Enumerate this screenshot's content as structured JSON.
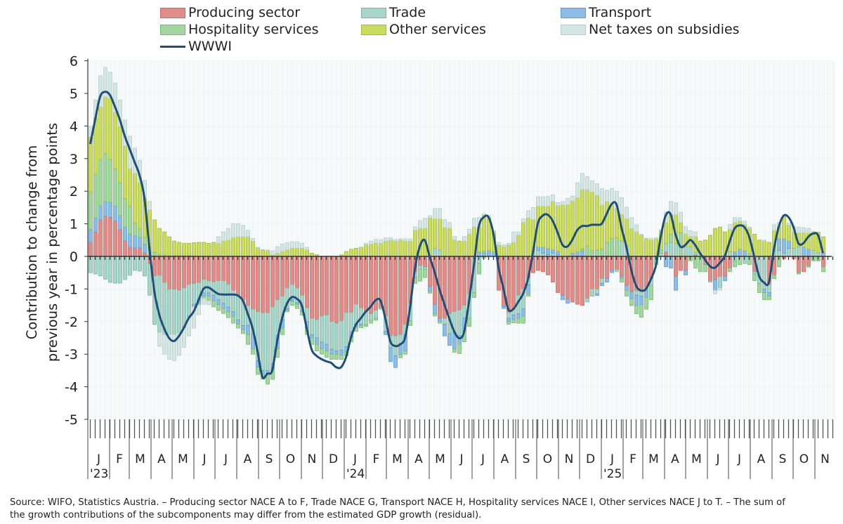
{
  "chart_data": {
    "type": "bar",
    "subtype": "stacked bar with line overlay, weekly",
    "ylabel_lines": [
      "Contribution to change from",
      "previous year in percentage points"
    ],
    "ylim": [
      -5,
      6
    ],
    "yticks": [
      "-5",
      "-4",
      "-3",
      "-2",
      "-1",
      "0",
      "1",
      "2",
      "3",
      "4",
      "5",
      "6"
    ],
    "grid": true,
    "legend_placement": "top",
    "x_start": "2023-01-01",
    "x_end": "2025-11-30",
    "x_frequency": "weekly",
    "month_labels": [
      "J",
      "F",
      "M",
      "A",
      "M",
      "J",
      "J",
      "A",
      "S",
      "O",
      "N",
      "D",
      "J",
      "F",
      "M",
      "A",
      "M",
      "J",
      "J",
      "A",
      "S",
      "O",
      "N",
      "D",
      "J",
      "F",
      "M",
      "A",
      "M",
      "J",
      "J",
      "A",
      "S",
      "O",
      "N"
    ],
    "year_labels": [
      {
        "month_index": 0,
        "label": "'23"
      },
      {
        "month_index": 12,
        "label": "'24"
      },
      {
        "month_index": 24,
        "label": "'25"
      }
    ],
    "series": [
      {
        "name": "Producing sector",
        "color": "#e08c89",
        "edge": "#cf6a67"
      },
      {
        "name": "Trade",
        "color": "#a9d5c8",
        "edge": "#79b7a4"
      },
      {
        "name": "Transport",
        "color": "#8dbde7",
        "edge": "#5f9dd3"
      },
      {
        "name": "Hospitality services",
        "color": "#a4d5a0",
        "edge": "#72bd6e"
      },
      {
        "name": "Other services",
        "color": "#c9dc5e",
        "edge": "#a2bb33"
      },
      {
        "name": "Net taxes on subsidies",
        "color": "#d4e6e3",
        "edge": "#b4cfcb"
      }
    ],
    "line": {
      "name": "WWWI",
      "color": "#1f4e79"
    },
    "columns": [
      "Producing sector",
      "Trade",
      "Transport",
      "Hospitality services",
      "Other services",
      "Net taxes on subsidies",
      "WWWI"
    ],
    "weeks": [
      [
        0.43,
        -0.5,
        0.39,
        1.16,
        1.68,
        0.33,
        3.45
      ],
      [
        0.75,
        -0.54,
        0.43,
        1.34,
        1.73,
        0.55,
        4.2
      ],
      [
        1.12,
        -0.6,
        0.43,
        1.42,
        1.62,
        0.95,
        4.9
      ],
      [
        1.23,
        -0.7,
        0.45,
        1.47,
        1.74,
        0.91,
        5.05
      ],
      [
        1.2,
        -0.8,
        0.46,
        1.31,
        1.88,
        0.8,
        4.95
      ],
      [
        1.08,
        -0.82,
        0.47,
        1.14,
        1.73,
        0.9,
        4.6
      ],
      [
        0.82,
        -0.82,
        0.43,
        1.01,
        1.73,
        0.81,
        4.2
      ],
      [
        0.47,
        -0.71,
        0.43,
        0.87,
        1.61,
        0.8,
        3.7
      ],
      [
        0.28,
        -0.58,
        0.41,
        0.86,
        1.14,
        1.0,
        3.3
      ],
      [
        0.26,
        -0.43,
        0.37,
        0.4,
        1.51,
        0.78,
        2.9
      ],
      [
        0.26,
        -0.45,
        0.32,
        0.26,
        1.42,
        0.69,
        2.5
      ],
      [
        0.11,
        -0.6,
        0.26,
        0.21,
        1.21,
        0.54,
        1.8
      ],
      [
        -0.22,
        -0.97,
        0.03,
        0.25,
        1.15,
        0.26,
        0.3
      ],
      [
        -0.6,
        -1.49,
        0.02,
        0.1,
        1.0,
        0,
        -1.04
      ],
      [
        -0.58,
        -1.75,
        0,
        0.05,
        0.81,
        -0.43,
        -1.77
      ],
      [
        -0.8,
        -1.6,
        0,
        0.03,
        0.72,
        -0.6,
        -2.2
      ],
      [
        -1.01,
        -1.39,
        0,
        0.02,
        0.58,
        -0.76,
        -2.5
      ],
      [
        -1.01,
        -1.39,
        0,
        0.02,
        0.45,
        -0.8,
        -2.6
      ],
      [
        -1.04,
        -1.32,
        0,
        0.02,
        0.41,
        -0.68,
        -2.45
      ],
      [
        -0.97,
        -1.19,
        -0.03,
        0.02,
        0.38,
        -0.6,
        -2.2
      ],
      [
        -0.86,
        -0.97,
        -0.04,
        0.02,
        0.38,
        -0.57,
        -1.9
      ],
      [
        -0.83,
        -0.64,
        -0.08,
        0,
        0.42,
        -0.65,
        -1.7
      ],
      [
        -0.8,
        -0.53,
        -0.1,
        -0.06,
        0.43,
        -0.3,
        -1.35
      ],
      [
        -0.71,
        -0.41,
        -0.1,
        -0.07,
        0.43,
        -0.18,
        -1.0
      ],
      [
        -0.75,
        -0.37,
        -0.1,
        -0.14,
        0.4,
        -0.12,
        -0.95
      ],
      [
        -0.78,
        -0.41,
        -0.17,
        -0.19,
        0.43,
        0,
        -1.05
      ],
      [
        -0.75,
        -0.58,
        -0.15,
        -0.18,
        0.4,
        0.2,
        -1.15
      ],
      [
        -0.75,
        -0.69,
        -0.16,
        -0.15,
        0.47,
        0.28,
        -1.17
      ],
      [
        -0.86,
        -0.69,
        -0.15,
        -0.18,
        0.5,
        0.36,
        -1.17
      ],
      [
        -1.04,
        -0.66,
        -0.14,
        -0.21,
        0.58,
        0.42,
        -1.17
      ],
      [
        -1.22,
        -0.73,
        -0.12,
        -0.13,
        0.6,
        0.4,
        -1.2
      ],
      [
        -1.33,
        -0.79,
        -0.13,
        -0.12,
        0.6,
        0.35,
        -1.35
      ],
      [
        -1.51,
        -0.6,
        -0.29,
        -0.3,
        0.6,
        0.2,
        -1.75
      ],
      [
        -1.62,
        -0.75,
        -0.47,
        -0.16,
        0.47,
        0.08,
        -2.2
      ],
      [
        -1.7,
        -1.5,
        -0.2,
        -0.22,
        0.26,
        0.02,
        -2.9
      ],
      [
        -1.73,
        -1.77,
        -0.1,
        -0.17,
        0.2,
        0,
        -3.7
      ],
      [
        -1.73,
        -1.77,
        -0.1,
        -0.32,
        0.17,
        0.03,
        -3.6
      ],
      [
        -1.55,
        -1.75,
        -0.15,
        -0.32,
        0.05,
        0.12,
        -3.5
      ],
      [
        -1.33,
        -1.1,
        -0.4,
        -0.27,
        0.1,
        0.2,
        -2.6
      ],
      [
        -1.22,
        -0.73,
        -0.25,
        -0.2,
        0.15,
        0.23,
        -1.9
      ],
      [
        -0.97,
        -0.63,
        -0.05,
        -0.05,
        0.2,
        0.22,
        -1.45
      ],
      [
        -0.86,
        -0.47,
        -0.05,
        -0.12,
        0.25,
        0.2,
        -1.25
      ],
      [
        -0.97,
        -0.45,
        -0.05,
        -0.13,
        0.25,
        0.2,
        -1.3
      ],
      [
        -1.19,
        -0.47,
        -0.04,
        -0.1,
        0.25,
        0.15,
        -1.5
      ],
      [
        -1.58,
        -0.42,
        -0.2,
        -0.2,
        0.2,
        0.08,
        -2.2
      ],
      [
        -1.9,
        -0.5,
        -0.1,
        -0.2,
        0.1,
        0,
        -2.85
      ],
      [
        -1.94,
        -0.56,
        -0.2,
        -0.2,
        0.05,
        0,
        -3.05
      ],
      [
        -1.83,
        -0.8,
        -0.2,
        -0.17,
        0,
        0,
        -3.15
      ],
      [
        -1.8,
        -0.9,
        -0.2,
        -0.2,
        0,
        0,
        -3.22
      ],
      [
        -2.0,
        -0.85,
        -0.15,
        -0.16,
        0,
        0,
        -3.27
      ],
      [
        -2.05,
        -0.85,
        -0.1,
        -0.16,
        0,
        0,
        -3.4
      ],
      [
        -1.98,
        -0.9,
        -0.15,
        -0.13,
        0.05,
        0,
        -3.4
      ],
      [
        -1.72,
        -1.05,
        -0.15,
        -0.13,
        0.15,
        0,
        -3.1
      ],
      [
        -1.72,
        -0.6,
        -0.15,
        -0.15,
        0.22,
        0,
        -2.5
      ],
      [
        -1.47,
        -0.6,
        -0.1,
        -0.13,
        0.25,
        0,
        -2.1
      ],
      [
        -1.58,
        -0.5,
        -0.04,
        -0.07,
        0.27,
        0.02,
        -1.9
      ],
      [
        -1.69,
        -0.4,
        0,
        -0.06,
        0.36,
        0.04,
        -1.7
      ],
      [
        -1.76,
        -0.2,
        0,
        -0.09,
        0.37,
        0.1,
        -1.55
      ],
      [
        -1.65,
        -0.25,
        0,
        -0.06,
        0.41,
        0.11,
        -1.35
      ],
      [
        -1.58,
        -0.04,
        0,
        0,
        0.4,
        0.11,
        -1.35
      ],
      [
        -1.83,
        -0.47,
        -0.1,
        0,
        0.47,
        0.1,
        -1.9
      ],
      [
        -2.44,
        -0.36,
        -0.43,
        0,
        0.5,
        0.07,
        -2.6
      ],
      [
        -2.44,
        -0.61,
        -0.36,
        0,
        0.47,
        0.05,
        -2.75
      ],
      [
        -2.4,
        -0.28,
        -0.33,
        -0.1,
        0.5,
        0.04,
        -2.7
      ],
      [
        -2.08,
        -0.32,
        -0.5,
        -0.1,
        0.47,
        0.07,
        -2.5
      ],
      [
        -1.44,
        -0.54,
        0,
        -0.14,
        0.47,
        0.07,
        -1.6
      ],
      [
        -0.47,
        -0.18,
        0,
        -0.18,
        0.8,
        0.1,
        -0.4
      ],
      [
        -0.29,
        -0.1,
        0,
        -0.37,
        0.86,
        0.24,
        0.3
      ],
      [
        -0.33,
        -0.07,
        0,
        -0.25,
        0.86,
        0.31,
        0.5
      ],
      [
        -0.93,
        0,
        -0.15,
        -0.05,
        1.18,
        0.07,
        0.0
      ],
      [
        -1.47,
        0.25,
        -0.29,
        -0.07,
        0.9,
        0.32,
        -0.47
      ],
      [
        -1.9,
        0.2,
        -0.1,
        -0.05,
        0.95,
        0.32,
        -1.0
      ],
      [
        -1.9,
        -0.18,
        -0.36,
        0,
        0.88,
        0.25,
        -1.47
      ],
      [
        -1.76,
        -0.61,
        -0.36,
        0,
        0.86,
        0.18,
        -1.9
      ],
      [
        -1.69,
        -0.65,
        -0.5,
        -0.1,
        0.5,
        0.11,
        -2.3
      ],
      [
        -1.65,
        -0.79,
        -0.25,
        -0.29,
        0.47,
        0,
        -2.51
      ],
      [
        -1.5,
        -0.39,
        -0.4,
        -0.33,
        0.47,
        0.14,
        -2.33
      ],
      [
        -1.15,
        -0.75,
        0,
        -0.25,
        0.68,
        0.15,
        -1.4
      ],
      [
        -0.02,
        -1.09,
        0,
        -0.15,
        0.9,
        0.27,
        -0.3
      ],
      [
        0,
        -0.22,
        0.14,
        -0.32,
        0.76,
        0.29,
        0.9
      ],
      [
        0,
        -0.05,
        0.11,
        0.05,
        1.11,
        0.04,
        1.2
      ],
      [
        0,
        0,
        0.18,
        0,
        1.0,
        0.07,
        1.2
      ],
      [
        0,
        0,
        0.14,
        0,
        0.6,
        0.05,
        0.68
      ],
      [
        -1.04,
        0,
        0,
        0,
        0.35,
        0.08,
        -0.32
      ],
      [
        -1.54,
        0,
        -0.06,
        0,
        0.3,
        0.06,
        -0.97
      ],
      [
        -1.72,
        -0.18,
        -0.1,
        -0.08,
        0.35,
        0.05,
        -1.62
      ],
      [
        -1.62,
        -0.18,
        -0.14,
        -0.1,
        0.43,
        0.32,
        -1.62
      ],
      [
        -1.19,
        -0.57,
        -0.14,
        -0.15,
        0.65,
        0.1,
        -1.4
      ],
      [
        -1.0,
        -0.61,
        -0.22,
        -0.22,
        1.04,
        0.11,
        -1.15
      ],
      [
        -0.65,
        -0.22,
        -0.28,
        -0.07,
        1.18,
        0.22,
        -0.7
      ],
      [
        -0.5,
        0.14,
        0,
        0,
        0.99,
        0.37,
        0.1
      ],
      [
        -0.43,
        0.18,
        0.11,
        0,
        1.25,
        0.29,
        1.0
      ],
      [
        -0.47,
        0.1,
        0.18,
        0,
        1.26,
        0.29,
        1.25
      ],
      [
        -0.57,
        0.05,
        0.19,
        0,
        1.3,
        0.3,
        1.28
      ],
      [
        -0.79,
        0.1,
        0.1,
        0,
        1.49,
        0.2,
        1.1
      ],
      [
        -1.11,
        0.05,
        0.1,
        0,
        1.4,
        0.1,
        0.75
      ],
      [
        -1.2,
        0,
        -0.13,
        0,
        1.58,
        0.1,
        0.36
      ],
      [
        -1.3,
        0,
        -0.14,
        0,
        1.58,
        0.2,
        0.3
      ],
      [
        -1.4,
        0,
        0.1,
        0,
        1.6,
        0.15,
        0.5
      ],
      [
        -1.47,
        0,
        0.14,
        0,
        1.66,
        0.46,
        0.8
      ],
      [
        -1.5,
        0,
        0.18,
        0.05,
        1.82,
        0.5,
        0.93
      ],
      [
        -1.29,
        -0.11,
        0,
        0.32,
        1.72,
        0.41,
        0.93
      ],
      [
        -1.0,
        -0.22,
        0,
        0.18,
        1.79,
        0.35,
        0.97
      ],
      [
        -1.0,
        -0.15,
        -0.05,
        0.2,
        1.67,
        0.36,
        0.97
      ],
      [
        -0.68,
        -0.15,
        -0.07,
        0.22,
        1.36,
        0.5,
        1.0
      ],
      [
        -0.68,
        0,
        -0.11,
        0.43,
        1.25,
        0.35,
        1.3
      ],
      [
        -0.43,
        0,
        -0.07,
        0.54,
        1.04,
        0.5,
        1.6
      ],
      [
        -0.4,
        -0.07,
        0,
        0.57,
        0.9,
        0.53,
        1.6
      ],
      [
        -0.61,
        0.47,
        -0.07,
        -0.11,
        0.82,
        0.51,
        0.9
      ],
      [
        -0.9,
        0.32,
        -0.14,
        -0.18,
        0.83,
        0.36,
        0.3
      ],
      [
        -1.08,
        0,
        -0.22,
        -0.21,
        0.86,
        0.33,
        -0.4
      ],
      [
        -1.05,
        -0.14,
        -0.32,
        -0.25,
        0.75,
        0.22,
        -0.9
      ],
      [
        -1.08,
        -0.14,
        -0.26,
        -0.39,
        0.65,
        0.03,
        -1.05
      ],
      [
        -0.97,
        -0.07,
        -0.22,
        -0.36,
        0.54,
        0.02,
        -1.0
      ],
      [
        -0.68,
        -0.22,
        0,
        -0.43,
        0.5,
        0.05,
        -0.7
      ],
      [
        0,
        0,
        0,
        -0.25,
        0.54,
        0.03,
        -0.3
      ],
      [
        0,
        0.1,
        0,
        0.1,
        0.59,
        0.02,
        0.6
      ],
      [
        0.14,
        0.26,
        -0.32,
        0,
        0.64,
        0.32,
        1.25
      ],
      [
        0,
        0.43,
        -0.36,
        0.25,
        0.61,
        0.4,
        1.3
      ],
      [
        -0.61,
        0.4,
        -0.43,
        0,
        0.88,
        0.36,
        0.68
      ],
      [
        -0.43,
        0,
        0,
        0.72,
        0.32,
        0.32,
        0.3
      ],
      [
        -0.43,
        0.29,
        -0.14,
        0,
        0.39,
        0.23,
        0.35
      ],
      [
        0,
        0.29,
        0,
        -0.14,
        0.32,
        0.18,
        0.5
      ],
      [
        0.05,
        0.07,
        0,
        -0.36,
        0.49,
        0.14,
        0.35
      ],
      [
        0,
        0,
        0,
        -0.47,
        0.47,
        0,
        0.1
      ],
      [
        -0.25,
        0,
        0,
        -0.22,
        0.5,
        0,
        -0.1
      ],
      [
        -0.75,
        -0.04,
        0,
        0,
        0.65,
        0,
        -0.3
      ],
      [
        -0.72,
        0,
        -0.32,
        0,
        0.86,
        -0.11,
        -0.35
      ],
      [
        -0.61,
        -0.36,
        0,
        0,
        0.9,
        -0.07,
        -0.2
      ],
      [
        -0.61,
        0,
        -0.14,
        0,
        0.75,
        0,
        0.0
      ],
      [
        -0.36,
        0.14,
        0,
        -0.11,
        0.69,
        0.15,
        0.45
      ],
      [
        0,
        -0.14,
        0.14,
        -0.18,
        0.9,
        0.15,
        0.85
      ],
      [
        0,
        0,
        0.22,
        -0.25,
        0.86,
        0.11,
        0.95
      ],
      [
        0,
        -0.22,
        0.18,
        0,
        0.8,
        0.1,
        0.9
      ],
      [
        0,
        0.07,
        0,
        -0.25,
        0.79,
        0.04,
        0.6
      ],
      [
        -0.47,
        -0.07,
        0,
        -0.21,
        0.68,
        0,
        0.0
      ],
      [
        0,
        -0.83,
        0,
        -0.28,
        0.5,
        0,
        -0.6
      ],
      [
        0,
        -1.0,
        -0.11,
        -0.22,
        0.47,
        0.03,
        -0.8
      ],
      [
        -0.86,
        -0.25,
        -0.11,
        -0.11,
        0.43,
        0,
        -0.8
      ],
      [
        -0.57,
        0.18,
        0,
        -0.11,
        0.61,
        0.18,
        0.2
      ],
      [
        0,
        0.18,
        0.36,
        -0.32,
        0.36,
        0.14,
        0.9
      ],
      [
        -0.07,
        0.1,
        0.44,
        0,
        0.68,
        0.04,
        1.25
      ],
      [
        0,
        0.25,
        0.22,
        0,
        0.49,
        0.07,
        1.2
      ],
      [
        -0.07,
        0.25,
        0,
        0,
        0.5,
        0.18,
        0.9
      ],
      [
        -0.5,
        0.29,
        0,
        -0.04,
        0.43,
        0.18,
        0.4
      ],
      [
        -0.47,
        0,
        0.29,
        0,
        0.43,
        0.16,
        0.4
      ],
      [
        -0.29,
        0,
        0.22,
        -0.04,
        0.5,
        0.14,
        0.6
      ],
      [
        0,
        0.18,
        0,
        -0.14,
        0.57,
        0.02,
        0.7
      ],
      [
        0,
        0.11,
        0,
        -0.14,
        0.63,
        0,
        0.65
      ],
      [
        -0.32,
        0,
        0.11,
        -0.15,
        0.49,
        0,
        0.1
      ]
    ]
  },
  "footer": {
    "line1": "Source: WIFO, Statistics Austria. – Producing sector NACE A to F, Trade NACE G, Transport NACE H, Hospitality services NACE I, Other services NACE J to T. – The sum of",
    "line2": "the growth contributions of the subcomponents may differ from the estimated GDP growth (residual)."
  }
}
